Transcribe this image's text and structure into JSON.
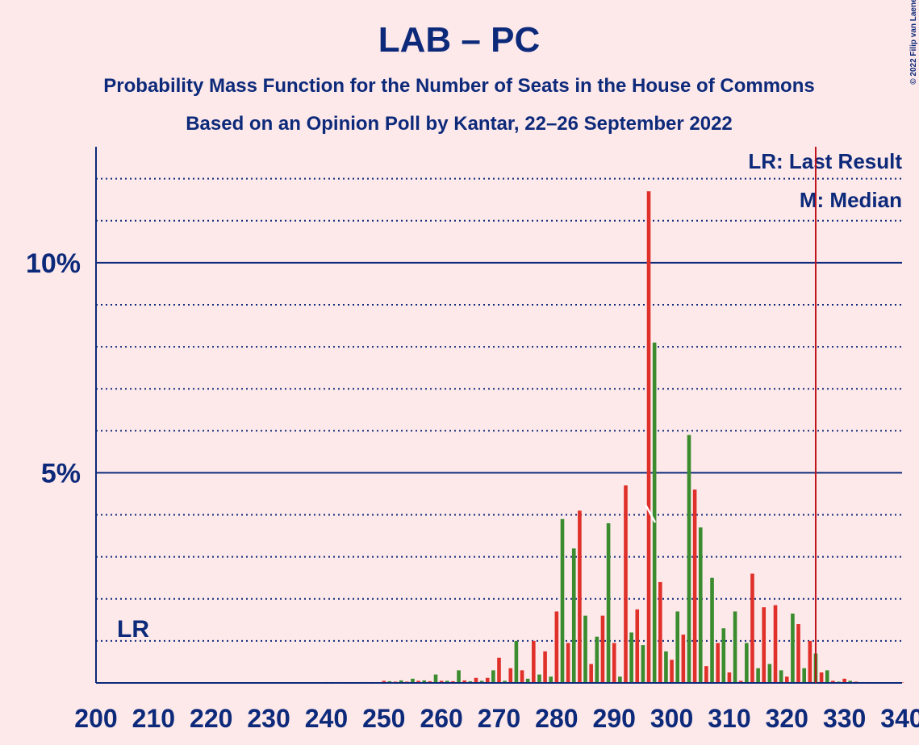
{
  "chart_data": {
    "type": "bar",
    "title": "LAB – PC",
    "subtitle": "Probability Mass Function for the Number of Seats in the House of Commons",
    "subtitle2": "Based on an Opinion Poll by Kantar, 22–26 September 2022",
    "copyright": "© 2022 Filip van Laenen",
    "legend": [
      "LR: Last Result",
      "M: Median"
    ],
    "last_result_label": "LR",
    "last_result": 325,
    "median": 296,
    "colors": [
      "#e0302a",
      "#3a8c2e"
    ],
    "xlim": [
      200,
      340
    ],
    "xticks": [
      200,
      210,
      220,
      230,
      240,
      250,
      260,
      270,
      280,
      290,
      300,
      310,
      320,
      330,
      340
    ],
    "ylim": [
      0,
      12.76
    ],
    "yticks": [
      {
        "value": 5,
        "label": "5%"
      },
      {
        "value": 10,
        "label": "10%"
      }
    ],
    "minor_yticks": [
      1,
      2,
      3,
      4,
      6,
      7,
      8,
      9,
      11,
      12
    ],
    "x": [
      200,
      201,
      202,
      203,
      204,
      205,
      206,
      207,
      208,
      209,
      210,
      211,
      212,
      213,
      214,
      215,
      216,
      217,
      218,
      219,
      220,
      221,
      222,
      223,
      224,
      225,
      226,
      227,
      228,
      229,
      230,
      231,
      232,
      233,
      234,
      235,
      236,
      237,
      238,
      239,
      240,
      241,
      242,
      243,
      244,
      245,
      246,
      247,
      248,
      249,
      250,
      251,
      252,
      253,
      254,
      255,
      256,
      257,
      258,
      259,
      260,
      261,
      262,
      263,
      264,
      265,
      266,
      267,
      268,
      269,
      270,
      271,
      272,
      273,
      274,
      275,
      276,
      277,
      278,
      279,
      280,
      281,
      282,
      283,
      284,
      285,
      286,
      287,
      288,
      289,
      290,
      291,
      292,
      293,
      294,
      295,
      296,
      297,
      298,
      299,
      300,
      301,
      302,
      303,
      304,
      305,
      306,
      307,
      308,
      309,
      310,
      311,
      312,
      313,
      314,
      315,
      316,
      317,
      318,
      319,
      320,
      321,
      322,
      323,
      324,
      325,
      326,
      327,
      328,
      329,
      330,
      331,
      332,
      333,
      334,
      335,
      336,
      337,
      338,
      339,
      340
    ],
    "values": [
      0,
      0,
      0,
      0,
      0,
      0,
      0,
      0,
      0,
      0,
      0,
      0,
      0,
      0,
      0,
      0,
      0,
      0,
      0,
      0,
      0,
      0,
      0,
      0,
      0,
      0,
      0,
      0,
      0,
      0,
      0,
      0,
      0,
      0,
      0,
      0,
      0,
      0,
      0,
      0,
      0.02,
      0.02,
      0.02,
      0.02,
      0.02,
      0.02,
      0.02,
      0.02,
      0.02,
      0.02,
      0.05,
      0.04,
      0.03,
      0.06,
      0.03,
      0.1,
      0.05,
      0.06,
      0.04,
      0.2,
      0.05,
      0.05,
      0.04,
      0.3,
      0.06,
      0.04,
      0.12,
      0.05,
      0.12,
      0.3,
      0.6,
      0.05,
      0.35,
      1.0,
      0.3,
      0.1,
      1.0,
      0.2,
      0.75,
      0.15,
      1.7,
      3.9,
      0.95,
      3.2,
      4.1,
      1.6,
      0.45,
      1.1,
      1.6,
      3.8,
      0.95,
      0.15,
      4.7,
      1.2,
      1.75,
      0.9,
      11.7,
      8.1,
      2.4,
      0.75,
      0.55,
      1.7,
      1.15,
      5.9,
      4.6,
      3.7,
      0.4,
      2.5,
      0.95,
      1.3,
      0.25,
      1.7,
      0.05,
      0.95,
      2.6,
      0.35,
      1.8,
      0.45,
      1.85,
      0.3,
      0.15,
      1.65,
      1.4,
      0.35,
      1.0,
      0.7,
      0.25,
      0.3,
      0.05,
      0.03,
      0.1,
      0.05,
      0.03,
      0.02,
      0.02,
      0.01,
      0.01,
      0.01,
      0.01,
      0.01,
      0.01
    ]
  }
}
